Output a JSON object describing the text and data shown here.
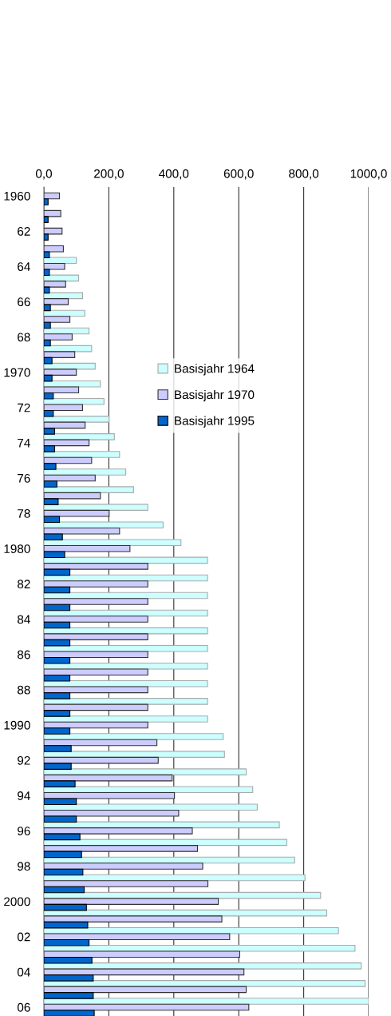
{
  "chart_data": {
    "type": "bar",
    "orientation": "horizontal",
    "categories": [
      "1960",
      null,
      "62",
      null,
      "64",
      null,
      "66",
      null,
      "68",
      null,
      "1970",
      null,
      "72",
      null,
      "74",
      null,
      "76",
      null,
      "78",
      null,
      "1980",
      null,
      "82",
      null,
      "84",
      null,
      "86",
      null,
      "88",
      null,
      "1990",
      null,
      "92",
      null,
      "94",
      null,
      "96",
      null,
      "98",
      null,
      "2000",
      null,
      "02",
      null,
      "04",
      null,
      "06"
    ],
    "series": [
      {
        "name": "Basisjahr 1964",
        "color": "#ccffff",
        "values": [
          null,
          null,
          null,
          null,
          100,
          107,
          119,
          126,
          139,
          147,
          158,
          174,
          185,
          201,
          217,
          233,
          252,
          276,
          320,
          367,
          422,
          504,
          504,
          504,
          504,
          504,
          504,
          504,
          504,
          504,
          504,
          552,
          556,
          623,
          643,
          657,
          725,
          748,
          772,
          804,
          852,
          871,
          907,
          958,
          977,
          989,
          1000
        ]
      },
      {
        "name": "Basisjahr 1970",
        "color": "#ccccff",
        "values": [
          48,
          52,
          56,
          60,
          64,
          67,
          75,
          80,
          87,
          95,
          100,
          107,
          119,
          127,
          139,
          147,
          158,
          174,
          201,
          233,
          265,
          320,
          320,
          320,
          320,
          320,
          320,
          320,
          320,
          320,
          320,
          348,
          352,
          395,
          402,
          415,
          457,
          473,
          489,
          505,
          537,
          548,
          572,
          603,
          616,
          623,
          631
        ]
      },
      {
        "name": "Basisjahr 1995",
        "color": "#0066cc",
        "values": [
          13,
          13,
          13,
          17,
          17,
          17,
          20,
          20,
          20,
          25,
          25,
          29,
          29,
          33,
          33,
          37,
          40,
          44,
          48,
          57,
          64,
          80,
          80,
          80,
          80,
          80,
          80,
          80,
          80,
          80,
          80,
          84,
          84,
          96,
          100,
          100,
          111,
          116,
          120,
          124,
          131,
          135,
          139,
          148,
          152,
          152,
          155
        ]
      }
    ],
    "xlim": [
      0,
      1000
    ],
    "xticks": [
      {
        "value": 0,
        "label": "0,0"
      },
      {
        "value": 200,
        "label": "200,0"
      },
      {
        "value": 400,
        "label": "400,0"
      },
      {
        "value": 600,
        "label": "600,0"
      },
      {
        "value": 800,
        "label": "800,0"
      },
      {
        "value": 1000,
        "label": "1000,0"
      }
    ],
    "grid": "x",
    "legend": "top"
  }
}
